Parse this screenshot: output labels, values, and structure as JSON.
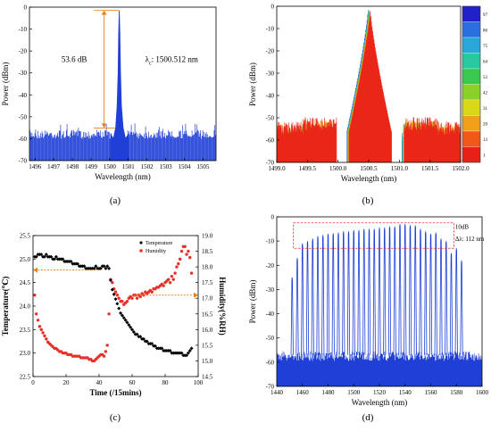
{
  "colors": {
    "blue": "#1f3fd6",
    "red": "#e8302a",
    "black": "#000000",
    "orange": "#e8821a",
    "frame": "#000000"
  },
  "captions": [
    "(a)",
    "(b)",
    "(c)",
    "(d)"
  ],
  "chart_data": [
    {
      "id": "a",
      "type": "line",
      "title": "",
      "xlabel": "Wavelength (nm)",
      "ylabel": "Power (dBm)",
      "xlim": [
        1495.7,
        1505.7
      ],
      "ylim": [
        -70,
        0
      ],
      "xticks": [
        1496,
        1497,
        1498,
        1499,
        1500,
        1501,
        1502,
        1503,
        1504,
        1505
      ],
      "yticks": [
        0,
        -10,
        -20,
        -30,
        -40,
        -50,
        -60,
        -70
      ],
      "series": [
        {
          "color": "blue",
          "noise_floor_db": [
            -60,
            -55
          ],
          "peak": {
            "x": 1500.512,
            "y": -1.5
          },
          "x": [
            1500.05,
            1500.2,
            1500.32,
            1500.4,
            1500.45,
            1500.48,
            1500.512,
            1500.545,
            1500.58,
            1500.63,
            1500.72,
            1500.85,
            1501.0
          ],
          "y": [
            -58,
            -60,
            -55,
            -45,
            -30,
            -12,
            -1.5,
            -12,
            -30,
            -45,
            -55,
            -60,
            -58
          ]
        }
      ],
      "annotations": [
        {
          "text": "53.6 dB",
          "x": 1498.1,
          "y": -25
        },
        {
          "text": "λ",
          "sub": "c",
          "after": ": 1500.512 nm",
          "x": 1501.9,
          "y": -25
        },
        {
          "type": "span",
          "x": 1499.7,
          "y_from": -1.5,
          "y_to": -55.1
        }
      ]
    },
    {
      "id": "b",
      "type": "line",
      "title": "",
      "xlabel": "Wavelength (nm)",
      "ylabel": "Power (dBm)",
      "xlim": [
        1499.0,
        1502.0
      ],
      "ylim": [
        -70,
        0
      ],
      "xticks": [
        1499.0,
        1499.5,
        1500.0,
        1500.5,
        1501.0,
        1501.5,
        1502.0
      ],
      "yticks": [
        0,
        -10,
        -20,
        -30,
        -40,
        -50,
        -60,
        -70
      ],
      "peak_x": 1500.51,
      "series_colors": [
        "#2020c8",
        "#2a6ee0",
        "#28a8d8",
        "#28c8a0",
        "#3ac850",
        "#8ad028",
        "#d8d818",
        "#f0a018",
        "#f05818",
        "#e82018"
      ],
      "colorbar": {
        "ticks": [
          "97",
          "86",
          "75",
          "64",
          "53",
          "42",
          "31",
          "20",
          "13",
          "1"
        ]
      }
    },
    {
      "id": "c",
      "type": "scatter",
      "title": "",
      "xlabel": "Time (/15mins)",
      "ylabel": "Temperature(℃)",
      "y2label": "Humidity(%RH)",
      "xlim": [
        0,
        100
      ],
      "ylim": [
        22.5,
        25.5
      ],
      "y2lim": [
        14.5,
        19.0
      ],
      "xticks": [
        0,
        20,
        40,
        60,
        80,
        100
      ],
      "yticks": [
        22.5,
        23.0,
        23.5,
        24.0,
        24.5,
        25.0,
        25.5
      ],
      "y2ticks": [
        14.5,
        15.0,
        15.5,
        16.0,
        16.5,
        17.0,
        17.5,
        18.0,
        18.5,
        19.0
      ],
      "legend": {
        "position": "top-right",
        "entries": [
          {
            "name": "Temperature",
            "color": "black",
            "marker": "diamond"
          },
          {
            "name": "Humidity",
            "color": "red",
            "marker": "circle"
          }
        ]
      },
      "series": [
        {
          "name": "Temperature",
          "axis": "left",
          "color": "black",
          "x": [
            1,
            2,
            3,
            4,
            5,
            6,
            7,
            8,
            9,
            10,
            11,
            12,
            13,
            14,
            15,
            16,
            17,
            18,
            19,
            20,
            21,
            22,
            23,
            24,
            25,
            26,
            27,
            28,
            29,
            30,
            31,
            32,
            33,
            34,
            35,
            36,
            37,
            38,
            39,
            40,
            41,
            42,
            43,
            44,
            45,
            46,
            47,
            48,
            49,
            50,
            51,
            52,
            53,
            54,
            55,
            56,
            57,
            58,
            59,
            60,
            61,
            62,
            63,
            64,
            65,
            66,
            67,
            68,
            69,
            70,
            71,
            72,
            73,
            74,
            75,
            76,
            77,
            78,
            79,
            80,
            81,
            82,
            83,
            84,
            85,
            86,
            87,
            88,
            89,
            90,
            91,
            92,
            93,
            94,
            95,
            96
          ],
          "y": [
            25.05,
            25.05,
            25.1,
            25.1,
            25.1,
            25.05,
            25.05,
            25.1,
            25.05,
            25.05,
            25.05,
            25.0,
            25.0,
            25.05,
            25.0,
            25.0,
            25.0,
            25.0,
            24.95,
            24.95,
            24.95,
            24.95,
            24.95,
            24.9,
            24.9,
            24.9,
            24.9,
            24.85,
            24.85,
            24.85,
            24.85,
            24.8,
            24.8,
            24.8,
            24.8,
            24.8,
            24.8,
            24.85,
            24.8,
            24.8,
            24.8,
            24.85,
            24.85,
            24.8,
            24.85,
            24.8,
            24.55,
            24.35,
            24.25,
            24.15,
            24.05,
            23.95,
            23.85,
            23.8,
            23.75,
            23.7,
            23.65,
            23.6,
            23.55,
            23.5,
            23.45,
            23.4,
            23.4,
            23.35,
            23.35,
            23.3,
            23.3,
            23.25,
            23.25,
            23.2,
            23.2,
            23.2,
            23.15,
            23.15,
            23.1,
            23.1,
            23.1,
            23.1,
            23.05,
            23.05,
            23.05,
            23.05,
            23.05,
            23.0,
            23.0,
            23.0,
            23.0,
            23.0,
            23.0,
            23.0,
            22.95,
            22.95,
            22.95,
            23.0,
            23.05,
            23.1
          ]
        },
        {
          "name": "Humidity",
          "axis": "right",
          "color": "red",
          "x": [
            1,
            2,
            3,
            4,
            5,
            6,
            7,
            8,
            9,
            10,
            11,
            12,
            13,
            14,
            15,
            16,
            17,
            18,
            19,
            20,
            21,
            22,
            23,
            24,
            25,
            26,
            27,
            28,
            29,
            30,
            31,
            32,
            33,
            34,
            35,
            36,
            37,
            38,
            39,
            40,
            41,
            42,
            43,
            44,
            45,
            46,
            47,
            48,
            49,
            50,
            51,
            52,
            53,
            54,
            55,
            56,
            57,
            58,
            59,
            60,
            61,
            62,
            63,
            64,
            65,
            66,
            67,
            68,
            69,
            70,
            71,
            72,
            73,
            74,
            75,
            76,
            77,
            78,
            79,
            80,
            81,
            82,
            83,
            84,
            85,
            86,
            87,
            88,
            89,
            90,
            91,
            92,
            93,
            94,
            95,
            96
          ],
          "y": [
            17.1,
            16.5,
            16.3,
            16.1,
            16.0,
            15.9,
            15.8,
            15.7,
            15.6,
            15.55,
            15.5,
            15.45,
            15.4,
            15.4,
            15.35,
            15.3,
            15.3,
            15.25,
            15.25,
            15.25,
            15.2,
            15.2,
            15.2,
            15.15,
            15.15,
            15.15,
            15.15,
            15.15,
            15.1,
            15.1,
            15.1,
            15.1,
            15.1,
            15.05,
            15.05,
            15.0,
            15.0,
            15.05,
            15.1,
            15.15,
            15.2,
            15.2,
            15.15,
            15.3,
            15.5,
            16.5,
            17.6,
            17.5,
            17.3,
            17.2,
            17.1,
            17.0,
            16.9,
            16.9,
            16.8,
            16.85,
            16.9,
            17.0,
            17.05,
            17.0,
            17.1,
            17.1,
            17.0,
            17.1,
            17.05,
            17.15,
            17.1,
            17.2,
            17.15,
            17.2,
            17.25,
            17.2,
            17.3,
            17.3,
            17.35,
            17.35,
            17.4,
            17.45,
            17.4,
            17.5,
            17.55,
            17.6,
            17.5,
            17.7,
            17.6,
            17.8,
            18.0,
            18.1,
            18.25,
            18.5,
            18.65,
            18.65,
            18.4,
            18.5,
            18.3,
            17.8
          ]
        }
      ],
      "annotations": [
        {
          "type": "arrow-left",
          "x_from": 40,
          "x_to": 0,
          "y2": 17.9
        },
        {
          "type": "arrow-right",
          "x_from": 61,
          "x_to": 100,
          "y2": 17.1
        }
      ]
    },
    {
      "id": "d",
      "type": "line",
      "title": "",
      "xlabel": "Wavelength (nm)",
      "ylabel": "Power (dBm)",
      "xlim": [
        1440,
        1600
      ],
      "ylim": [
        -70,
        0
      ],
      "xticks": [
        1440,
        1460,
        1480,
        1500,
        1520,
        1540,
        1560,
        1580,
        1600
      ],
      "yticks": [
        0,
        -10,
        -20,
        -30,
        -40,
        -50,
        -60,
        -70
      ],
      "series": [
        {
          "color": "blue",
          "floor_db": -57,
          "x": [
            1452,
            1456,
            1460,
            1464,
            1468,
            1472,
            1476,
            1480,
            1484,
            1488,
            1492,
            1496,
            1500,
            1504,
            1508,
            1512,
            1516,
            1520,
            1524,
            1528,
            1532,
            1536,
            1540,
            1544,
            1548,
            1552,
            1556,
            1560,
            1564,
            1568,
            1572,
            1576,
            1580,
            1584
          ],
          "y": [
            -25,
            -17,
            -11,
            -10,
            -9,
            -8,
            -7.5,
            -7,
            -6.8,
            -6.5,
            -6,
            -6,
            -5.5,
            -5.5,
            -5,
            -5,
            -5,
            -4.5,
            -4.5,
            -4,
            -4,
            -3,
            -3,
            -3.5,
            -3.5,
            -5,
            -6,
            -7,
            -6.5,
            -9,
            -10,
            -15,
            -13,
            -18
          ]
        }
      ],
      "annotations": [
        {
          "type": "box",
          "x_from": 1453,
          "x_to": 1578,
          "y_from": -2.5,
          "y_to": -13
        },
        {
          "text": "10dB",
          "x": 1579,
          "y": -5
        },
        {
          "text": "Δλ: 112 nm",
          "x": 1579,
          "y": -10
        }
      ]
    }
  ]
}
